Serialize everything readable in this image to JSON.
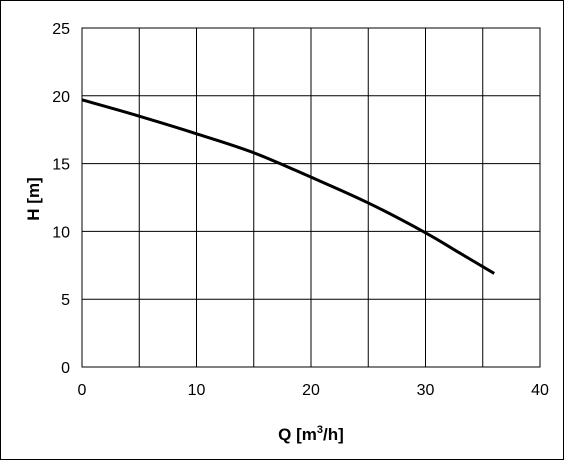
{
  "chart_data": {
    "type": "line",
    "title": "",
    "xlabel": "Q [m",
    "xlabel_sup": "3",
    "xlabel_end": "/h]",
    "ylabel": "H [m]",
    "xlim": [
      0,
      40
    ],
    "ylim": [
      0,
      25
    ],
    "xticks": [
      0,
      10,
      20,
      30,
      40
    ],
    "yticks": [
      0,
      5,
      10,
      15,
      20,
      25
    ],
    "x_grid_step": 5,
    "y_grid_step": 5,
    "grid": true,
    "legend": "none",
    "series": [
      {
        "color": "#000000",
        "x": [
          0,
          5,
          10,
          15,
          20,
          25,
          30,
          33,
          36
        ],
        "y": [
          19.7,
          18.5,
          17.2,
          15.8,
          14.0,
          12.1,
          9.9,
          8.4,
          6.9
        ]
      }
    ]
  }
}
